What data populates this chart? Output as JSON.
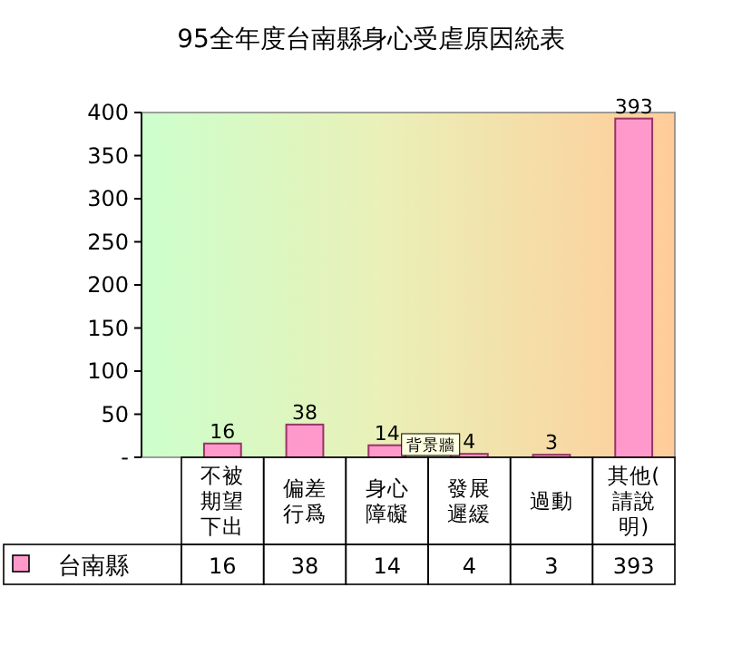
{
  "chart_data": {
    "type": "bar",
    "title": "95全年度台南縣身心受虐原因統表",
    "categories": [
      "不被期望下出",
      "偏差行爲",
      "身心障礙",
      "發展遲緩",
      "過動",
      "其他(請說明)"
    ],
    "series": [
      {
        "name": "台南縣",
        "color": "#ff99cc",
        "values": [
          16,
          38,
          14,
          4,
          3,
          393
        ],
        "value_labels": [
          "16",
          "38",
          "14",
          "4",
          "3",
          "393"
        ]
      }
    ],
    "ylim": [
      0,
      400
    ],
    "yticks": [
      {
        "value": 0,
        "label": "-"
      },
      50,
      100,
      150,
      200,
      250,
      300,
      350,
      400
    ],
    "data_labels": true,
    "legend": "bottom",
    "annotations": [
      {
        "text": "背景牆",
        "x": "發展遲緩",
        "y": 0
      }
    ]
  }
}
